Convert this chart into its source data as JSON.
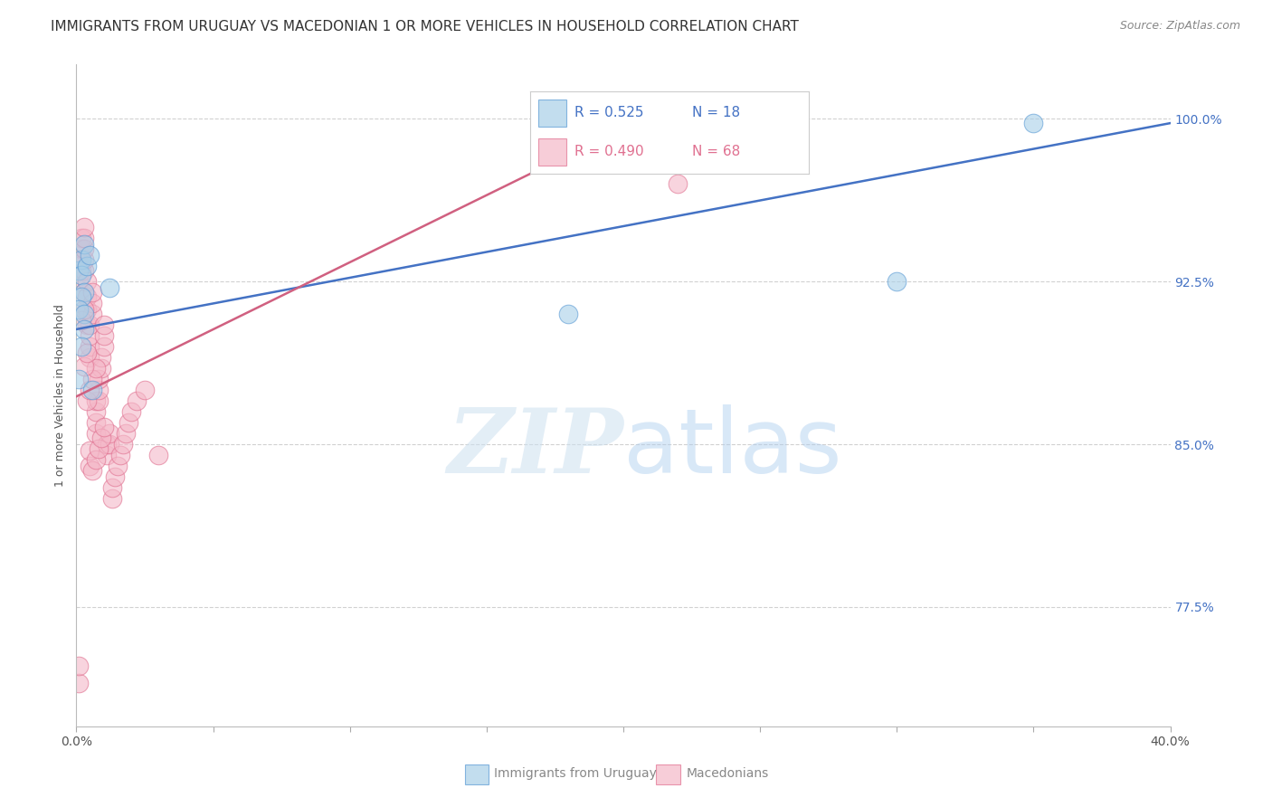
{
  "title": "IMMIGRANTS FROM URUGUAY VS MACEDONIAN 1 OR MORE VEHICLES IN HOUSEHOLD CORRELATION CHART",
  "source": "Source: ZipAtlas.com",
  "yaxis_label": "1 or more Vehicles in Household",
  "legend_blue_r": "0.525",
  "legend_blue_n": "18",
  "legend_pink_r": "0.490",
  "legend_pink_n": "68",
  "legend_blue_label": "Immigrants from Uruguay",
  "legend_pink_label": "Macedonians",
  "blue_color": "#a8cfe8",
  "pink_color": "#f4b8c8",
  "blue_edge_color": "#5b9bd5",
  "pink_edge_color": "#e07090",
  "blue_line_color": "#4472c4",
  "pink_line_color": "#d06080",
  "watermark_zip": "ZIP",
  "watermark_atlas": "atlas",
  "xlim": [
    0.0,
    0.4
  ],
  "ylim": [
    0.72,
    1.025
  ],
  "yticks": [
    0.775,
    0.85,
    0.925,
    1.0
  ],
  "ytick_labels": [
    "77.5%",
    "85.0%",
    "92.5%",
    "100.0%"
  ],
  "xticks": [
    0.0,
    0.05,
    0.1,
    0.15,
    0.2,
    0.25,
    0.3,
    0.35,
    0.4
  ],
  "xtick_labels": [
    "0.0%",
    "",
    "",
    "",
    "",
    "",
    "",
    "",
    "40.0%"
  ],
  "blue_x": [
    0.001,
    0.002,
    0.002,
    0.003,
    0.003,
    0.004,
    0.005,
    0.002,
    0.001,
    0.003,
    0.003,
    0.002,
    0.001,
    0.006,
    0.012,
    0.3,
    0.35,
    0.18
  ],
  "blue_y": [
    0.93,
    0.935,
    0.928,
    0.942,
    0.92,
    0.932,
    0.937,
    0.918,
    0.912,
    0.91,
    0.903,
    0.895,
    0.88,
    0.875,
    0.922,
    0.925,
    0.998,
    0.91
  ],
  "pink_x": [
    0.001,
    0.001,
    0.001,
    0.002,
    0.002,
    0.002,
    0.002,
    0.003,
    0.003,
    0.003,
    0.003,
    0.003,
    0.003,
    0.004,
    0.004,
    0.004,
    0.004,
    0.005,
    0.005,
    0.005,
    0.005,
    0.006,
    0.006,
    0.006,
    0.007,
    0.007,
    0.007,
    0.007,
    0.008,
    0.008,
    0.008,
    0.009,
    0.009,
    0.01,
    0.01,
    0.01,
    0.011,
    0.011,
    0.012,
    0.012,
    0.013,
    0.013,
    0.014,
    0.015,
    0.016,
    0.017,
    0.018,
    0.019,
    0.02,
    0.022,
    0.025,
    0.03,
    0.002,
    0.003,
    0.004,
    0.005,
    0.006,
    0.007,
    0.003,
    0.004,
    0.005,
    0.005,
    0.006,
    0.007,
    0.008,
    0.009,
    0.01,
    0.22
  ],
  "pink_y": [
    0.74,
    0.748,
    0.925,
    0.93,
    0.935,
    0.94,
    0.945,
    0.93,
    0.935,
    0.94,
    0.945,
    0.95,
    0.92,
    0.905,
    0.912,
    0.918,
    0.925,
    0.89,
    0.895,
    0.9,
    0.905,
    0.91,
    0.915,
    0.92,
    0.855,
    0.86,
    0.865,
    0.87,
    0.87,
    0.875,
    0.88,
    0.885,
    0.89,
    0.895,
    0.9,
    0.905,
    0.845,
    0.85,
    0.85,
    0.855,
    0.825,
    0.83,
    0.835,
    0.84,
    0.845,
    0.85,
    0.855,
    0.86,
    0.865,
    0.87,
    0.875,
    0.845,
    0.907,
    0.912,
    0.87,
    0.875,
    0.88,
    0.885,
    0.886,
    0.892,
    0.84,
    0.847,
    0.838,
    0.843,
    0.848,
    0.853,
    0.858,
    0.97
  ],
  "blue_line_x": [
    0.0,
    0.4
  ],
  "blue_line_y": [
    0.903,
    0.998
  ],
  "pink_line_x": [
    0.0,
    0.215
  ],
  "pink_line_y": [
    0.872,
    1.005
  ]
}
